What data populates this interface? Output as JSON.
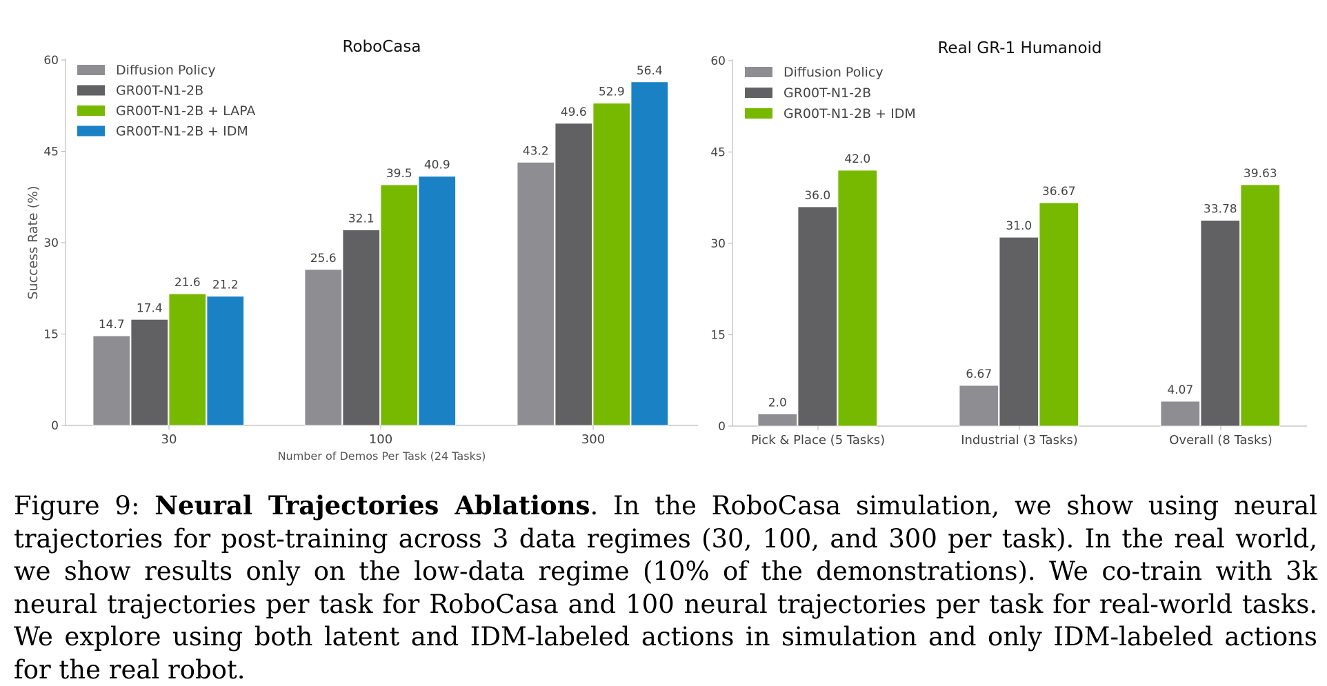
{
  "chart_data": [
    {
      "type": "bar",
      "title": "RoboCasa",
      "xlabel": "Number of Demos Per Task (24 Tasks)",
      "ylabel": "Success Rate (%)",
      "ylim": [
        0,
        60
      ],
      "yticks": [
        0,
        15,
        30,
        45,
        60
      ],
      "grid": false,
      "legend_position": "top-left",
      "categories": [
        "30",
        "100",
        "300"
      ],
      "series": [
        {
          "name": "Diffusion Policy",
          "color": "#8e8e92",
          "values": [
            14.7,
            25.6,
            43.2
          ],
          "labels": [
            "14.7",
            "25.6",
            "43.2"
          ]
        },
        {
          "name": "GR00T-N1-2B",
          "color": "#616164",
          "values": [
            17.4,
            32.1,
            49.6
          ],
          "labels": [
            "17.4",
            "32.1",
            "49.6"
          ]
        },
        {
          "name": "GR00T-N1-2B + LAPA",
          "color": "#76b900",
          "values": [
            21.6,
            39.5,
            52.9
          ],
          "labels": [
            "21.6",
            "39.5",
            "52.9"
          ]
        },
        {
          "name": "GR00T-N1-2B + IDM",
          "color": "#1a82c4",
          "values": [
            21.2,
            40.9,
            56.4
          ],
          "labels": [
            "21.2",
            "40.9",
            "56.4"
          ]
        }
      ]
    },
    {
      "type": "bar",
      "title": "Real GR-1 Humanoid",
      "xlabel": "",
      "ylabel": "",
      "ylim": [
        0,
        60
      ],
      "yticks": [
        0,
        15,
        30,
        45,
        60
      ],
      "grid": false,
      "legend_position": "top-left",
      "categories": [
        "Pick & Place (5 Tasks)",
        "Industrial (3 Tasks)",
        "Overall (8 Tasks)"
      ],
      "series": [
        {
          "name": "Diffusion Policy",
          "color": "#8e8e92",
          "values": [
            2.0,
            6.67,
            4.07
          ],
          "labels": [
            "2.0",
            "6.67",
            "4.07"
          ]
        },
        {
          "name": "GR00T-N1-2B",
          "color": "#616164",
          "values": [
            36.0,
            31.0,
            33.78
          ],
          "labels": [
            "36.0",
            "31.0",
            "33.78"
          ]
        },
        {
          "name": "GR00T-N1-2B + IDM",
          "color": "#76b900",
          "values": [
            42.0,
            36.67,
            39.63
          ],
          "labels": [
            "42.0",
            "36.67",
            "39.63"
          ]
        }
      ]
    }
  ],
  "caption": {
    "label": "Figure 9: ",
    "bold": "Neural Trajectories Ablations",
    "text": ". In the RoboCasa simulation, we show using neural trajectories for post-training across 3 data regimes (30, 100, and 300 per task). In the real world, we show results only on the low-data regime (10% of the demonstrations). We co-train with 3k neural trajectories per task for RoboCasa and 100 neural trajectories per task for real-world tasks. We explore using both latent and IDM-labeled actions in simulation and only IDM-labeled actions for the real robot."
  }
}
